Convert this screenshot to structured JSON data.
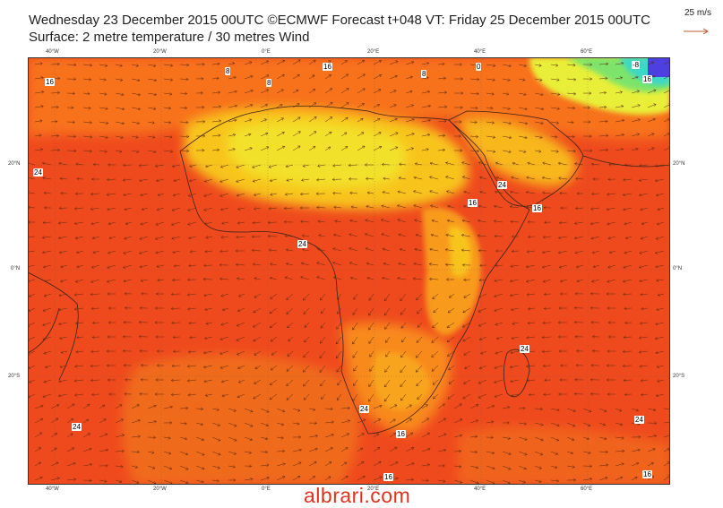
{
  "header": {
    "line1": "Wednesday 23 December 2015 00UTC ©ECMWF Forecast t+048 VT: Friday 25 December 2015 00UTC",
    "line2": "Surface: 2 metre temperature / 30 metres Wind"
  },
  "legend": {
    "wind_scale": "25 m/s"
  },
  "axes": {
    "top": [
      "40°W",
      "20°W",
      "0°E",
      "20°E",
      "40°E",
      "60°E"
    ],
    "bottom": [
      "40°W",
      "20°W",
      "0°E",
      "20°E",
      "40°E",
      "60°E"
    ],
    "left": [
      "20°N",
      "0°N",
      "20°S"
    ],
    "right": [
      "20°N",
      "0°N",
      "20°S"
    ]
  },
  "contour_labels": [
    "16",
    "8",
    "8",
    "16",
    "8",
    "0",
    "-8",
    "16",
    "24",
    "24",
    "16",
    "24",
    "16",
    "24",
    "24",
    "24",
    "16",
    "24",
    "16",
    "16"
  ],
  "colors": {
    "hot": "#ef4a1e",
    "warm": "#f86a12",
    "mild": "#f89a1e",
    "cool": "#f8d22a",
    "cold": "#e9f23a",
    "colder": "#7ee36a",
    "coldest": "#4d3fe0"
  },
  "watermark": "albrari.com"
}
